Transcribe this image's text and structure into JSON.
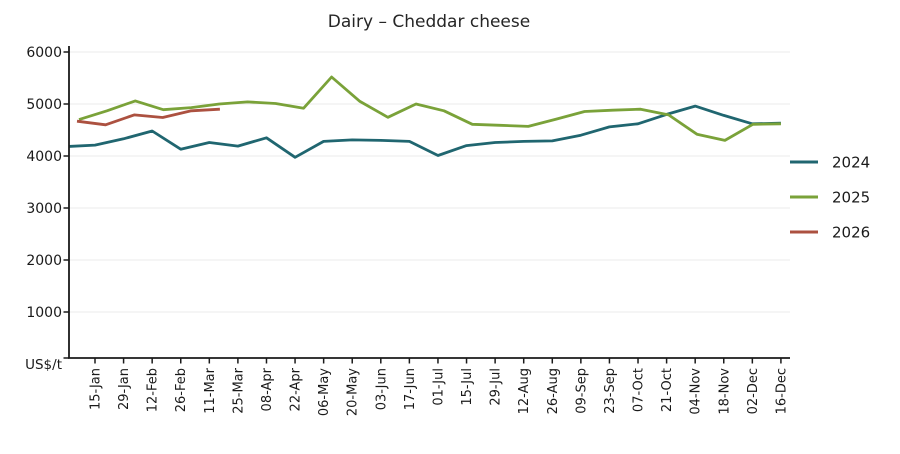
{
  "chart_data": {
    "type": "line",
    "title": "Dairy – Cheddar cheese",
    "ylabel": "US$/t",
    "xlabel": "",
    "ylim": [
      0,
      6000
    ],
    "ytick_values": [
      6000,
      5000,
      4000,
      3000,
      2000,
      1000
    ],
    "grid": "horizontal",
    "legend_position": "right",
    "categories": [
      "15-Jan",
      "29-Jan",
      "12-Feb",
      "26-Feb",
      "11-Mar",
      "25-Mar",
      "08-Apr",
      "22-Apr",
      "06-May",
      "20-May",
      "03-Jun",
      "17-Jun",
      "01-Jul",
      "15-Jul",
      "29-Jul",
      "12-Aug",
      "26-Aug",
      "09-Sep",
      "23-Sep",
      "07-Oct",
      "21-Oct",
      "04-Nov",
      "18-Nov",
      "02-Dec",
      "16-Dec"
    ],
    "series": [
      {
        "name": "2024",
        "color": "#206670",
        "points": [
          [
            -1,
            4180
          ],
          [
            0,
            4210
          ],
          [
            1,
            4330
          ],
          [
            2,
            4480
          ],
          [
            3,
            4130
          ],
          [
            4,
            4260
          ],
          [
            5,
            4190
          ],
          [
            6,
            4350
          ],
          [
            7,
            3975
          ],
          [
            8,
            4280
          ],
          [
            9,
            4310
          ],
          [
            10,
            4300
          ],
          [
            11,
            4280
          ],
          [
            12,
            4010
          ],
          [
            13,
            4200
          ],
          [
            14,
            4260
          ],
          [
            15,
            4280
          ],
          [
            16,
            4290
          ],
          [
            17,
            4400
          ],
          [
            18,
            4560
          ],
          [
            19,
            4620
          ],
          [
            20,
            4800
          ],
          [
            21,
            4960
          ],
          [
            22,
            4780
          ],
          [
            23,
            4620
          ],
          [
            24,
            4630
          ]
        ]
      },
      {
        "name": "2025",
        "color": "#7aa239",
        "points": [
          [
            -0.56,
            4700
          ],
          [
            0.42,
            4870
          ],
          [
            1.41,
            5060
          ],
          [
            2.39,
            4890
          ],
          [
            3.37,
            4930
          ],
          [
            4.35,
            5000
          ],
          [
            5.34,
            5040
          ],
          [
            6.32,
            5010
          ],
          [
            7.3,
            4920
          ],
          [
            8.28,
            5520
          ],
          [
            9.27,
            5050
          ],
          [
            10.25,
            4745
          ],
          [
            11.23,
            5000
          ],
          [
            12.21,
            4870
          ],
          [
            13.2,
            4610
          ],
          [
            14.18,
            4590
          ],
          [
            15.16,
            4570
          ],
          [
            16.14,
            4710
          ],
          [
            17.13,
            4855
          ],
          [
            18.11,
            4880
          ],
          [
            19.09,
            4900
          ],
          [
            20.07,
            4790
          ],
          [
            21.06,
            4420
          ],
          [
            22.04,
            4300
          ],
          [
            23.02,
            4610
          ],
          [
            24.0,
            4620
          ]
        ]
      },
      {
        "name": "2026",
        "color": "#ac5140",
        "points": [
          [
            -0.63,
            4670
          ],
          [
            0.37,
            4600
          ],
          [
            1.37,
            4790
          ],
          [
            2.37,
            4740
          ],
          [
            3.37,
            4870
          ],
          [
            4.37,
            4900
          ]
        ]
      }
    ],
    "legend": [
      {
        "label": "2024",
        "color": "#206670"
      },
      {
        "label": "2025",
        "color": "#7aa239"
      },
      {
        "label": "2026",
        "color": "#ac5140"
      }
    ],
    "colors": {
      "axis": "#1a1a1a",
      "gridline": "#ebebeb",
      "text": "#1a1a1a"
    }
  }
}
